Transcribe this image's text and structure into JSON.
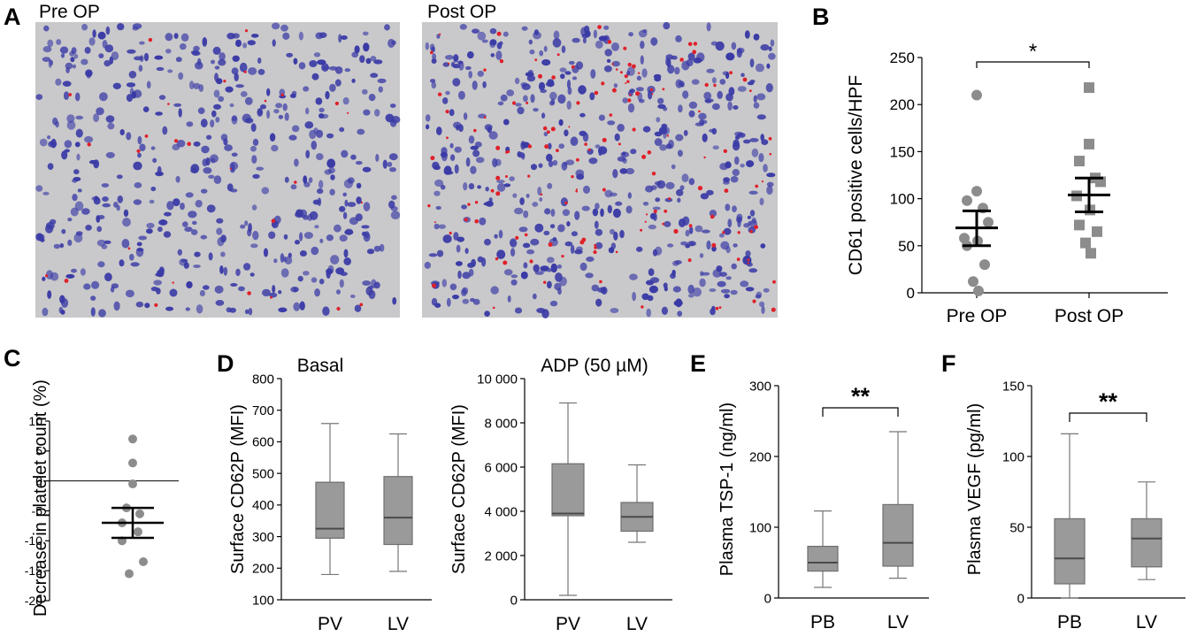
{
  "panel_letters": {
    "a": "A",
    "b": "B",
    "c": "C",
    "d": "D",
    "e": "E",
    "f": "F"
  },
  "micrographs": {
    "pre_label": "Pre OP",
    "post_label": "Post OP",
    "colors": {
      "background": "#c9c9cb",
      "nucleus": "#3a3aa6",
      "stain": "#e0202a"
    }
  },
  "chart_data": [
    {
      "panel": "B",
      "type": "scatter",
      "ylabel": "CD61 positive cells/HPF",
      "ylim": [
        0,
        250
      ],
      "yticks": [
        0,
        50,
        100,
        150,
        200,
        250
      ],
      "categories": [
        "Pre OP",
        "Post OP"
      ],
      "series": [
        {
          "marker": "circle",
          "color": "#8c8c8c",
          "values": [
            210,
            108,
            98,
            90,
            75,
            58,
            55,
            50,
            30,
            12,
            2
          ],
          "mean": 69,
          "sem_low": 50,
          "sem_high": 87
        },
        {
          "marker": "square",
          "color": "#8c8c8c",
          "values": [
            218,
            158,
            140,
            122,
            118,
            103,
            88,
            72,
            65,
            53,
            42
          ],
          "mean": 104,
          "sem_low": 86,
          "sem_high": 122
        }
      ],
      "significance": "*"
    },
    {
      "panel": "C",
      "type": "scatter",
      "ylabel": "Decrease in platelet count (%)",
      "ylim": [
        -20,
        10
      ],
      "yticks": [
        -20,
        -15,
        -10,
        -5,
        0,
        5,
        10
      ],
      "values": [
        7,
        3,
        -0.5,
        -4.5,
        -5.5,
        -7,
        -8.5,
        -10,
        -13.5,
        -15.5
      ],
      "mean": -7,
      "sem_low": -9.5,
      "sem_high": -4.5
    },
    {
      "panel": "D-basal",
      "type": "box",
      "title": "Basal",
      "ylabel": "Surface CD62P (MFI)",
      "ylim": [
        100,
        800
      ],
      "yticks": [
        100,
        200,
        300,
        400,
        500,
        600,
        700,
        800
      ],
      "categories": [
        "PV",
        "LV"
      ],
      "boxes": [
        {
          "min": 180,
          "q1": 295,
          "median": 325,
          "q3": 472,
          "max": 658
        },
        {
          "min": 190,
          "q1": 275,
          "median": 360,
          "q3": 490,
          "max": 625
        }
      ]
    },
    {
      "panel": "D-adp",
      "type": "box",
      "title": "ADP (50 µM)",
      "ylabel": "Surface CD62P (MFI)",
      "ylim": [
        0,
        10000
      ],
      "yticks": [
        0,
        2000,
        4000,
        6000,
        8000,
        10000
      ],
      "yticklabels": [
        "0",
        "2 000",
        "4 000",
        "6 000",
        "8 000",
        "10 000"
      ],
      "categories": [
        "PV",
        "LV"
      ],
      "boxes": [
        {
          "min": 200,
          "q1": 3800,
          "median": 3900,
          "q3": 6150,
          "max": 8900
        },
        {
          "min": 2600,
          "q1": 3100,
          "median": 3750,
          "q3": 4400,
          "max": 6100
        }
      ]
    },
    {
      "panel": "E",
      "type": "box",
      "ylabel": "Plasma TSP-1 (ng/ml)",
      "ylim": [
        0,
        300
      ],
      "yticks": [
        0,
        100,
        200,
        300
      ],
      "categories": [
        "PB",
        "LV"
      ],
      "boxes": [
        {
          "min": 15,
          "q1": 38,
          "median": 50,
          "q3": 73,
          "max": 123
        },
        {
          "min": 28,
          "q1": 45,
          "median": 78,
          "q3": 132,
          "max": 235
        }
      ],
      "significance": "**"
    },
    {
      "panel": "F",
      "type": "box",
      "ylabel": "Plasma VEGF (pg/ml)",
      "ylim": [
        0,
        150
      ],
      "yticks": [
        0,
        50,
        100,
        150
      ],
      "categories": [
        "PB",
        "LV"
      ],
      "boxes": [
        {
          "min": 0,
          "q1": 10,
          "median": 28,
          "q3": 56,
          "max": 116
        },
        {
          "min": 13,
          "q1": 22,
          "median": 42,
          "q3": 56,
          "max": 82
        }
      ],
      "significance": "**"
    }
  ]
}
